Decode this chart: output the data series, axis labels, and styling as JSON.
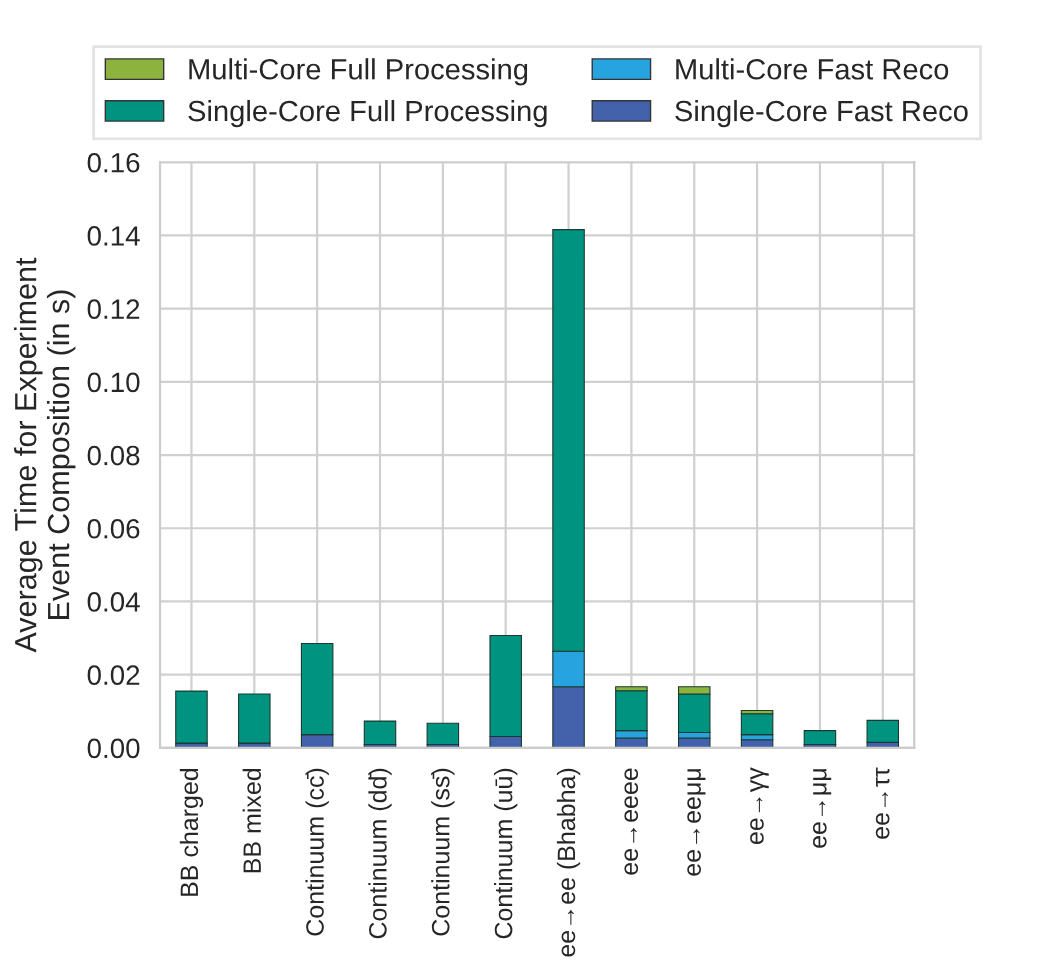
{
  "chart_data": {
    "type": "bar",
    "stacked": true,
    "ylabel": "Average Time for Experiment\nEvent Composition (in s)",
    "categories": [
      "BB charged",
      "BB mixed",
      "Continuum (cc̄)",
      "Continuum (dd̄)",
      "Continuum (ss̄)",
      "Continuum (uū)",
      "ee→ee (Bhabha)",
      "ee→eeee",
      "ee→eeμμ",
      "ee→γγ",
      "ee→μμ",
      "ee→ττ"
    ],
    "series": [
      {
        "name": "Single-Core Fast Reco",
        "color": "#4462ab",
        "values": [
          0.0013,
          0.0013,
          0.0036,
          0.0009,
          0.0009,
          0.0031,
          0.0167,
          0.0027,
          0.0027,
          0.0022,
          0.0009,
          0.0015
        ]
      },
      {
        "name": "Multi-Core Fast Reco",
        "color": "#27a3e0",
        "values": [
          null,
          null,
          null,
          null,
          null,
          null,
          0.0097,
          0.002,
          0.0015,
          0.0014,
          null,
          null
        ]
      },
      {
        "name": "Single-Core Full Processing",
        "color": "#009480",
        "values": [
          0.0142,
          0.0134,
          0.0249,
          0.0064,
          0.0058,
          0.0276,
          0.1152,
          0.0109,
          0.0105,
          0.0057,
          0.0038,
          0.006
        ]
      },
      {
        "name": "Multi-Core Full Processing",
        "color": "#8db33f",
        "values": [
          null,
          null,
          null,
          null,
          null,
          null,
          null,
          0.0011,
          0.002,
          0.0009,
          null,
          null
        ]
      }
    ],
    "ylim": [
      0,
      0.16
    ],
    "yticks": [
      {
        "value": 0,
        "label": "0.00"
      },
      {
        "value": 0.02,
        "label": "0.02"
      },
      {
        "value": 0.04,
        "label": "0.04"
      },
      {
        "value": 0.06,
        "label": "0.06"
      },
      {
        "value": 0.08,
        "label": "0.08"
      },
      {
        "value": 0.1,
        "label": "0.10"
      },
      {
        "value": 0.12,
        "label": "0.12"
      },
      {
        "value": 0.14,
        "label": "0.14"
      },
      {
        "value": 0.16,
        "label": "0.16"
      }
    ],
    "grid": true,
    "legend": "top"
  }
}
